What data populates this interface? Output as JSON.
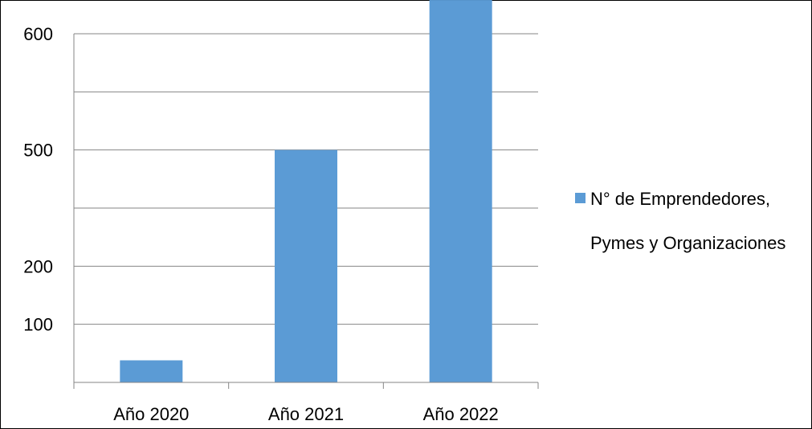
{
  "chart_data": {
    "type": "bar",
    "title": "",
    "xlabel": "",
    "ylabel": "",
    "categories": [
      "Año 2020",
      "Año 2021",
      "Año 2022"
    ],
    "series": [
      {
        "name": "N° de Emprendedores, Pymes y Organizaciones",
        "values": [
          38,
          500,
          629
        ],
        "color": "#5b9bd5"
      }
    ],
    "ytick_labels": [
      "",
      "100",
      "200",
      "",
      "500",
      "",
      "600"
    ],
    "grid": true,
    "legend": {
      "placement": "right",
      "lines": [
        "N° de Emprendedores,",
        "Pymes y Organizaciones"
      ]
    }
  }
}
